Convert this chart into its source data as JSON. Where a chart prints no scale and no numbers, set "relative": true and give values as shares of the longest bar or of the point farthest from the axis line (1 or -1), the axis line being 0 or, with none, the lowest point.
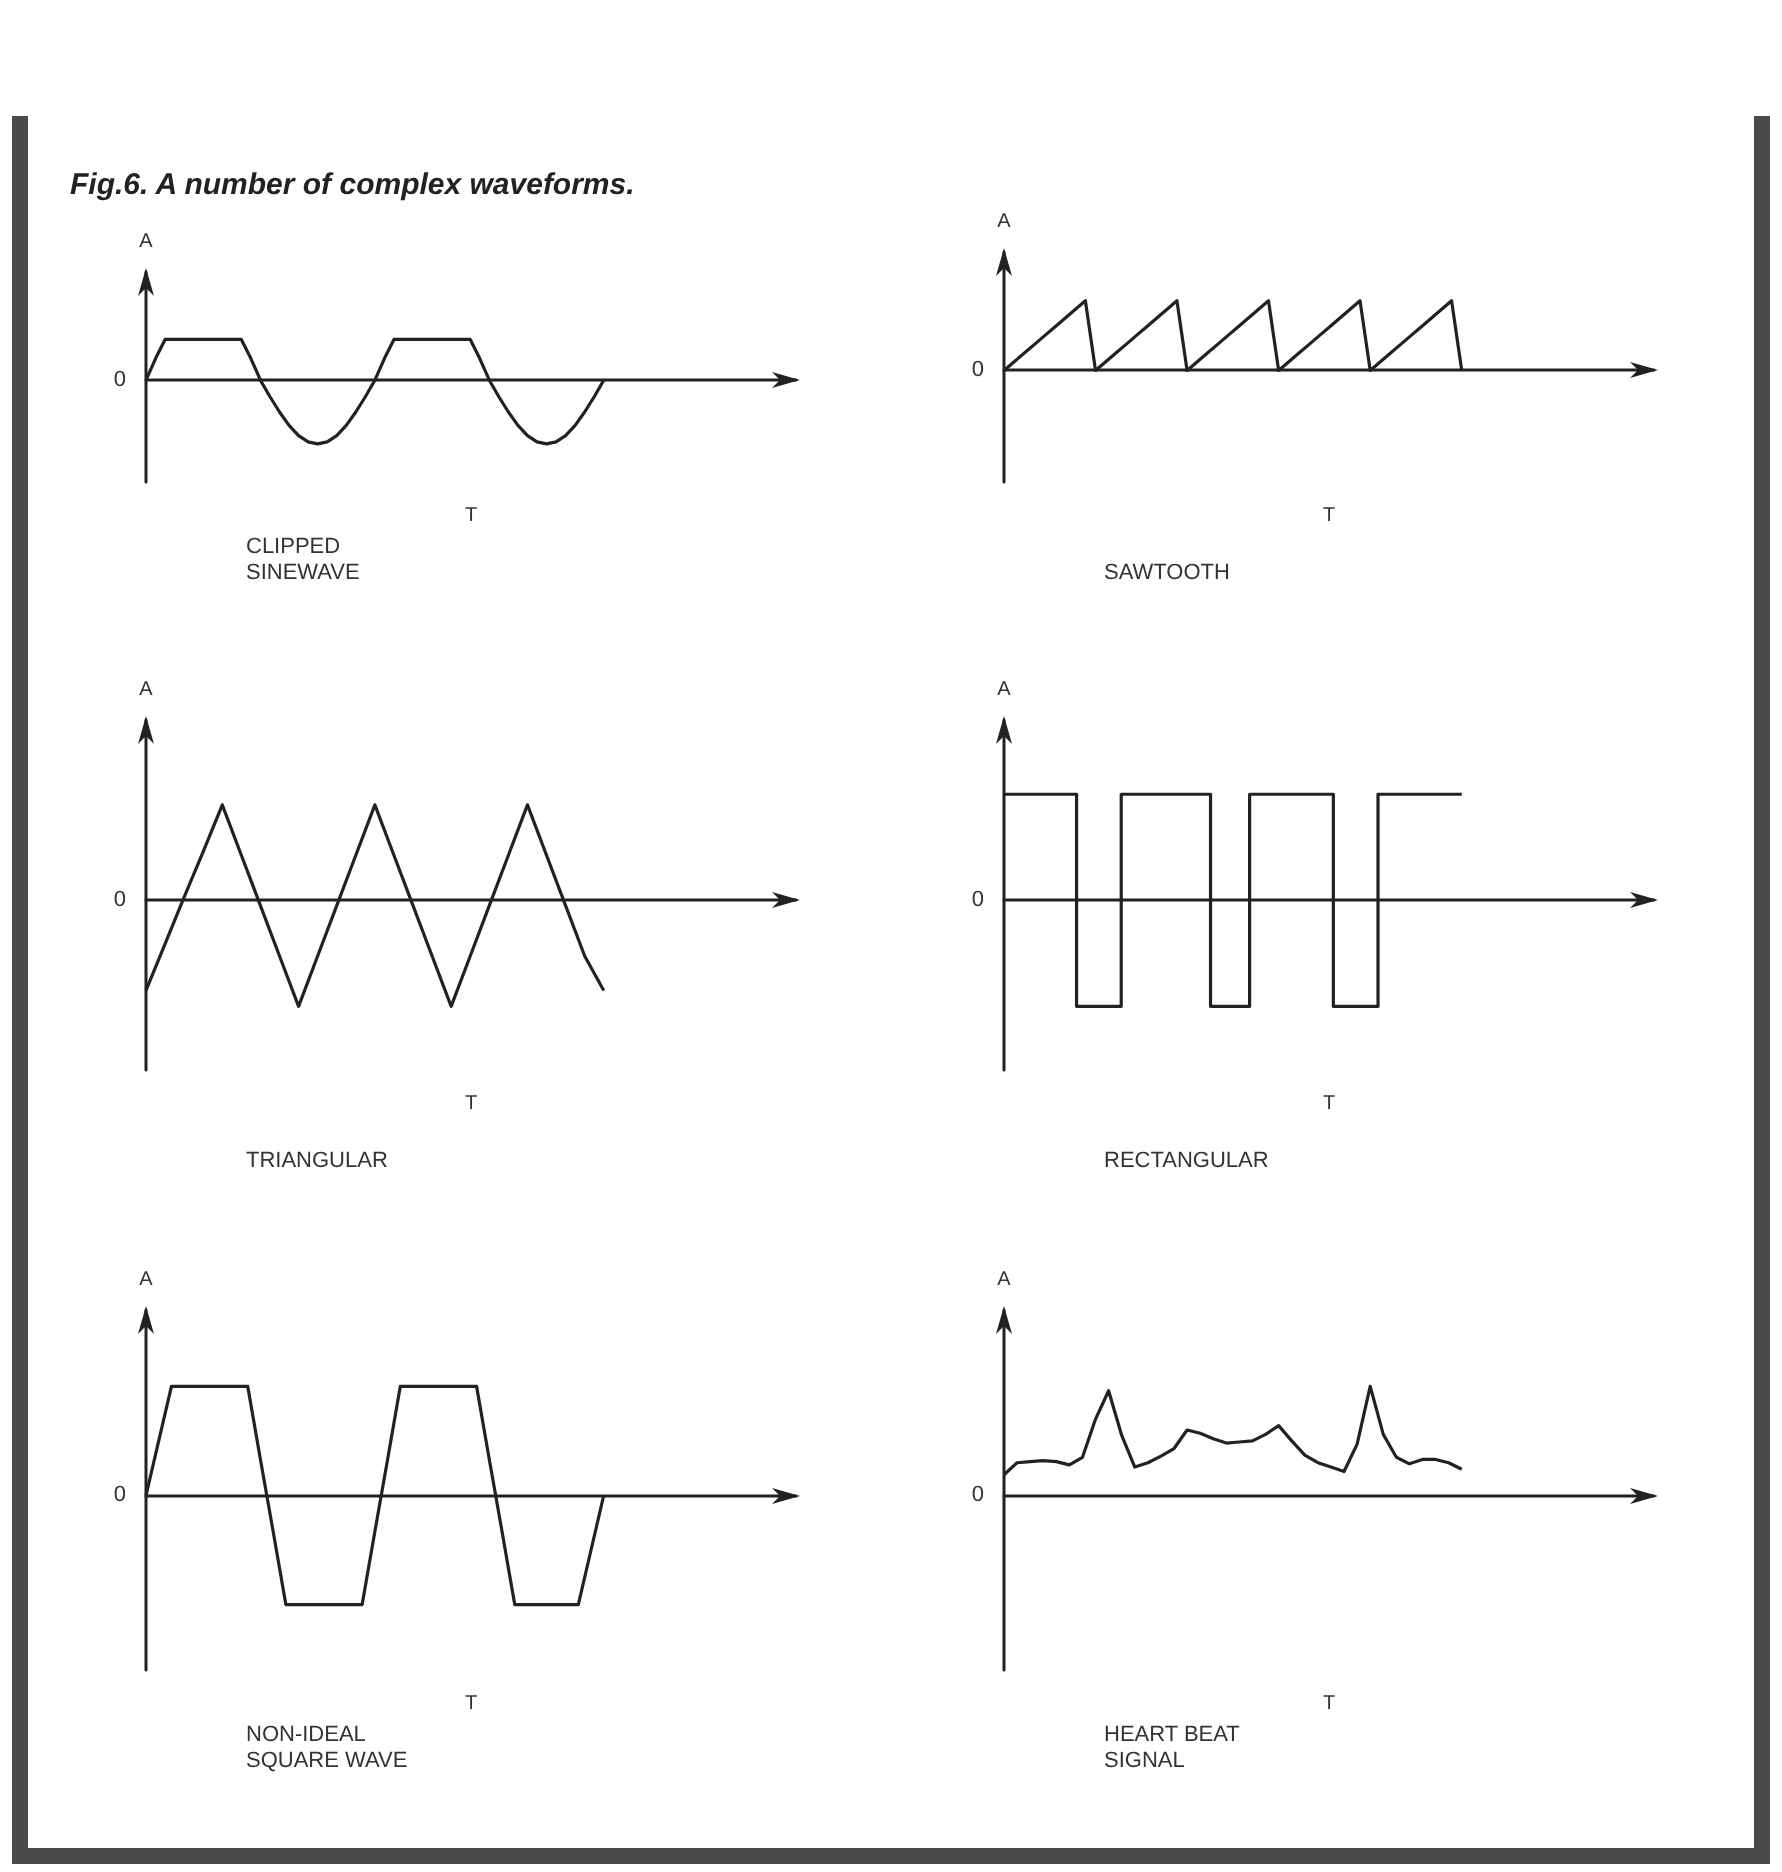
{
  "chart_data": [
    {
      "type": "line",
      "title": "Fig.6. A number of complex waveforms.",
      "subtitle": "CLIPPED SINEWAVE",
      "xlabel": "T",
      "ylabel": "A",
      "relative": true,
      "grid": false,
      "marker": "none",
      "annotations": [
        "0"
      ],
      "categories": [
        null,
        null,
        null,
        null,
        null,
        null,
        null,
        null,
        null,
        null,
        null,
        null,
        null,
        null,
        null,
        null,
        null,
        null,
        null,
        null,
        null,
        null,
        null,
        null,
        null,
        null,
        null,
        null,
        null,
        null,
        null,
        null,
        null,
        null,
        null,
        null,
        null,
        null,
        null,
        null,
        null,
        null,
        null,
        null,
        null,
        null,
        null,
        null,
        null
      ],
      "series": [
        {
          "color": "#222222",
          "values": [
            0,
            0.34,
            0.64,
            0.64,
            0.64,
            0.64,
            0.64,
            0.64,
            0.64,
            0.64,
            0.64,
            0.34,
            0,
            -0.26,
            -0.5,
            -0.71,
            -0.87,
            -0.97,
            -1,
            -0.97,
            -0.87,
            -0.71,
            -0.5,
            -0.26,
            0,
            0.34,
            0.64,
            0.64,
            0.64,
            0.64,
            0.64,
            0.64,
            0.64,
            0.64,
            0.64,
            0.34,
            0,
            -0.26,
            -0.5,
            -0.71,
            -0.87,
            -0.97,
            -1,
            -0.97,
            -0.87,
            -0.71,
            -0.5,
            -0.26,
            0
          ]
        }
      ]
    },
    {
      "type": "line",
      "subtitle": "SAWTOOTH",
      "xlabel": "T",
      "ylabel": "A",
      "relative": true,
      "grid": false,
      "marker": "none",
      "annotations": [
        "0"
      ],
      "categories": [
        null,
        null,
        null,
        null,
        null,
        null,
        null,
        null,
        null,
        null,
        null,
        null,
        null,
        null,
        null,
        null,
        null,
        null,
        null,
        null,
        null,
        null,
        null,
        null,
        null,
        null,
        null,
        null,
        null,
        null,
        null,
        null,
        null,
        null,
        null,
        null,
        null,
        null,
        null,
        null,
        null,
        null,
        null,
        null,
        null,
        null
      ],
      "series": [
        {
          "color": "#222222",
          "values": [
            0,
            0.125,
            0.25,
            0.375,
            0.5,
            0.625,
            0.75,
            0.875,
            1,
            0,
            0.125,
            0.25,
            0.375,
            0.5,
            0.625,
            0.75,
            0.875,
            1,
            0,
            0.125,
            0.25,
            0.375,
            0.5,
            0.625,
            0.75,
            0.875,
            1,
            0,
            0.125,
            0.25,
            0.375,
            0.5,
            0.625,
            0.75,
            0.875,
            1,
            0,
            0.125,
            0.25,
            0.375,
            0.5,
            0.625,
            0.75,
            0.875,
            1,
            0
          ]
        }
      ]
    },
    {
      "type": "line",
      "subtitle": "TRIANGULAR",
      "xlabel": "T",
      "ylabel": "A",
      "relative": true,
      "grid": false,
      "marker": "none",
      "annotations": [
        "0"
      ],
      "categories": [
        null,
        null,
        null,
        null,
        null,
        null,
        null,
        null,
        null,
        null,
        null,
        null,
        null,
        null,
        null,
        null,
        null,
        null,
        null,
        null,
        null,
        null,
        null,
        null,
        null
      ],
      "series": [
        {
          "color": "#222222",
          "values": [
            -0.85,
            -0.41,
            0.03,
            0.46,
            0.9,
            0.425,
            -0.05,
            -0.525,
            -1,
            -0.525,
            -0.05,
            0.425,
            0.9,
            0.425,
            -0.05,
            -0.525,
            -1,
            -0.525,
            -0.05,
            0.425,
            0.9,
            0.425,
            -0.05,
            -0.525,
            -0.85
          ]
        }
      ]
    },
    {
      "type": "step",
      "subtitle": "RECTANGULAR",
      "xlabel": "T",
      "ylabel": "A",
      "relative": true,
      "grid": false,
      "marker": "none",
      "annotations": [
        "0"
      ],
      "categories": [
        null,
        null,
        null,
        null,
        null,
        null,
        null,
        null,
        null,
        null,
        null,
        null,
        null,
        null,
        null,
        null,
        null,
        null,
        null,
        null,
        null,
        null,
        null,
        null,
        null,
        null,
        null,
        null,
        null,
        null,
        null,
        null,
        null,
        null,
        null,
        null,
        null,
        null,
        null,
        null,
        null,
        null,
        null,
        null,
        null,
        null,
        null,
        null,
        null,
        null,
        null,
        null,
        null,
        null,
        null,
        null,
        null,
        null,
        null,
        null,
        null,
        null,
        null,
        null,
        null,
        null,
        null,
        null,
        null,
        null,
        null,
        null,
        null,
        null,
        null,
        null,
        null,
        null,
        null,
        null,
        null,
        null,
        null
      ],
      "series": [
        {
          "color": "#222222",
          "values": [
            1,
            1,
            1,
            1,
            1,
            1,
            1,
            1,
            1,
            1,
            1,
            1,
            1,
            -1,
            -1,
            -1,
            -1,
            -1,
            -1,
            -1,
            -1,
            1,
            1,
            1,
            1,
            1,
            1,
            1,
            1,
            1,
            1,
            1,
            1,
            1,
            1,
            1,
            1,
            -1,
            -1,
            -1,
            -1,
            -1,
            -1,
            -1,
            1,
            1,
            1,
            1,
            1,
            1,
            1,
            1,
            1,
            1,
            1,
            1,
            1,
            1,
            1,
            -1,
            -1,
            -1,
            -1,
            -1,
            -1,
            -1,
            -1,
            1,
            1,
            1,
            1,
            1,
            1,
            1,
            1,
            1,
            1,
            1,
            1,
            1,
            1,
            1,
            1
          ]
        }
      ]
    },
    {
      "type": "line",
      "subtitle": "NON-IDEAL SQUARE WAVE",
      "xlabel": "T",
      "ylabel": "A",
      "relative": true,
      "grid": false,
      "marker": "none",
      "annotations": [
        "0"
      ],
      "categories": [
        null,
        null,
        null,
        null,
        null,
        null,
        null,
        null,
        null,
        null,
        null,
        null,
        null,
        null,
        null,
        null,
        null,
        null,
        null,
        null,
        null,
        null,
        null,
        null,
        null,
        null,
        null,
        null,
        null,
        null,
        null,
        null,
        null,
        null,
        null,
        null,
        null
      ],
      "series": [
        {
          "color": "#222222",
          "values": [
            0,
            0.5,
            1,
            1,
            1,
            1,
            1,
            1,
            1,
            0.33,
            -0.33,
            -1,
            -1,
            -1,
            -1,
            -1,
            -1,
            -1,
            -0.33,
            0.33,
            1,
            1,
            1,
            1,
            1,
            1,
            1,
            0.33,
            -0.33,
            -1,
            -1,
            -1,
            -1,
            -1,
            -1,
            -0.5,
            0
          ]
        }
      ]
    },
    {
      "type": "line",
      "subtitle": "HEART BEAT SIGNAL",
      "xlabel": "T",
      "ylabel": "A",
      "relative": true,
      "grid": false,
      "marker": "none",
      "annotations": [
        "0"
      ],
      "categories": [
        null,
        null,
        null,
        null,
        null,
        null,
        null,
        null,
        null,
        null,
        null,
        null,
        null,
        null,
        null,
        null,
        null,
        null,
        null,
        null,
        null,
        null,
        null,
        null,
        null,
        null,
        null,
        null,
        null,
        null,
        null,
        null,
        null,
        null,
        null,
        null
      ],
      "series": [
        {
          "color": "#222222",
          "values": [
            0.19,
            0.3,
            0.31,
            0.32,
            0.31,
            0.28,
            0.35,
            0.7,
            0.96,
            0.55,
            0.26,
            0.3,
            0.36,
            0.43,
            0.6,
            0.57,
            0.52,
            0.48,
            0.49,
            0.5,
            0.56,
            0.64,
            0.5,
            0.37,
            0.3,
            0.26,
            0.22,
            0.47,
            1,
            0.56,
            0.35,
            0.29,
            0.33,
            0.33,
            0.3,
            0.24
          ]
        }
      ]
    }
  ]
}
